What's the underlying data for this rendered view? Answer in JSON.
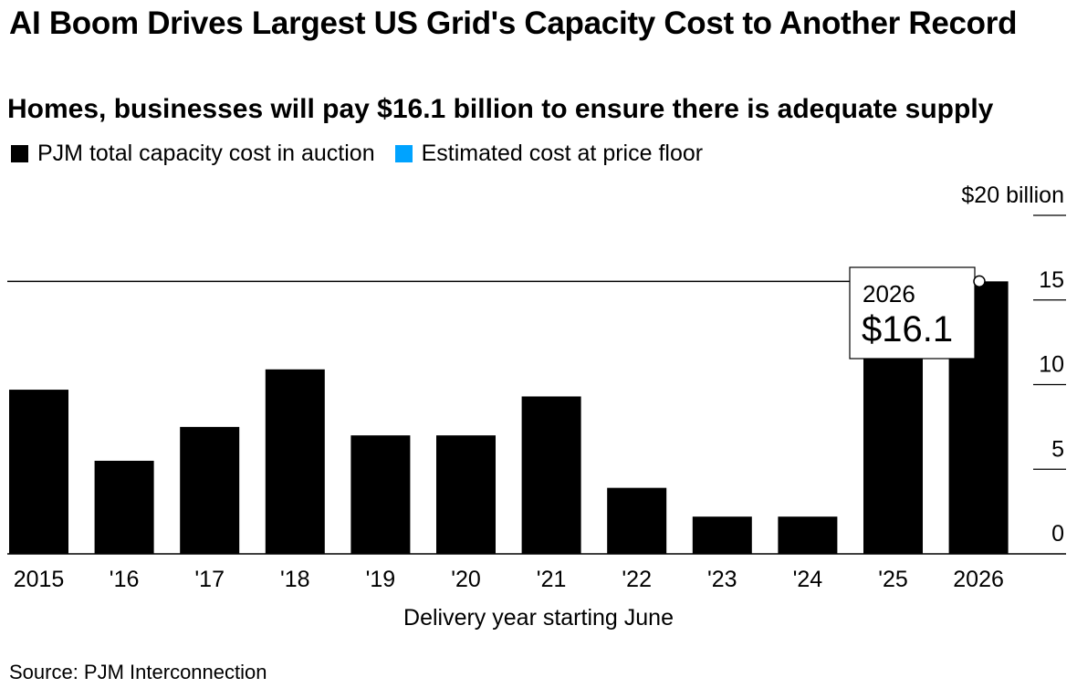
{
  "chart_data": {
    "type": "bar",
    "title": "AI Boom Drives Largest US Grid's Capacity Cost to Another Record",
    "subtitle": "Homes, businesses will pay $16.1 billion to ensure there is adequate supply",
    "xlabel": "Delivery year starting June",
    "ylabel": "",
    "categories": [
      "2015",
      "'16",
      "'17",
      "'18",
      "'19",
      "'20",
      "'21",
      "'22",
      "'23",
      "'24",
      "'25",
      "2026"
    ],
    "series": [
      {
        "name": "PJM total capacity cost in auction",
        "color": "#000000",
        "values": [
          9.7,
          5.5,
          7.5,
          10.9,
          7.0,
          7.0,
          9.3,
          3.9,
          2.2,
          2.2,
          14.7,
          16.1
        ]
      }
    ],
    "legend": [
      {
        "label": "PJM total capacity cost in auction",
        "color": "#000000"
      },
      {
        "label": "Estimated cost at price floor",
        "color": "#00a3ff"
      }
    ],
    "ylim": [
      0,
      20
    ],
    "yticks": [
      0,
      5,
      10,
      15,
      20
    ],
    "ytick_labels": [
      "0",
      "5",
      "10",
      "15",
      "$20 billion"
    ],
    "reference_line": {
      "value": 16.1
    },
    "annotation": {
      "category": "2026",
      "year": "2026",
      "value_label": "$16.1"
    },
    "source": "Source: PJM Interconnection"
  }
}
